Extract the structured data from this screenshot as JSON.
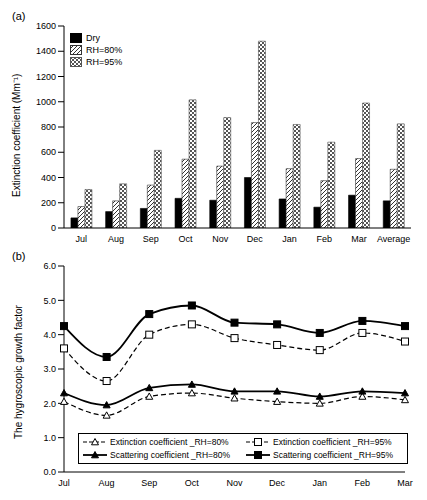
{
  "chart_data": [
    {
      "type": "bar",
      "title": "(a)",
      "y_label": "Extinction coefficient (Mm⁻¹)",
      "categories": [
        "Jul",
        "Aug",
        "Sep",
        "Oct",
        "Nov",
        "Dec",
        "Jan",
        "Feb",
        "Mar",
        "Average"
      ],
      "series": [
        {
          "name": "Dry",
          "color": "#000000",
          "values": [
            80,
            130,
            155,
            235,
            220,
            400,
            230,
            165,
            260,
            215
          ]
        },
        {
          "name": "RH=80%",
          "color": "#333333",
          "values": [
            170,
            215,
            340,
            545,
            490,
            835,
            470,
            375,
            550,
            465
          ]
        },
        {
          "name": "RH=95%",
          "color": "#555555",
          "values": [
            305,
            350,
            615,
            1015,
            875,
            1480,
            820,
            680,
            990,
            825
          ]
        }
      ],
      "ylim": [
        0,
        1600
      ],
      "yticks": [
        0,
        200,
        400,
        600,
        800,
        1000,
        1200,
        1400,
        1600
      ],
      "grid": false,
      "legend": "upper left"
    },
    {
      "type": "line",
      "title": "(b)",
      "y_label": "The hygroscopic growth factor",
      "categories": [
        "Jul",
        "Aug",
        "Sep",
        "Oct",
        "Nov",
        "Dec",
        "Jan",
        "Feb",
        "Mar"
      ],
      "series": [
        {
          "name": "Extinction coefficient _RH=80%",
          "color": "#000000",
          "line_style": "dashed",
          "marker": "open-triangle",
          "values": [
            2.05,
            1.65,
            2.2,
            2.3,
            2.15,
            2.05,
            2.0,
            2.2,
            2.1
          ]
        },
        {
          "name": "Extinction coefficient _RH=95%",
          "color": "#000000",
          "line_style": "dashed",
          "marker": "open-square",
          "values": [
            3.6,
            2.65,
            4.0,
            4.3,
            3.9,
            3.7,
            3.55,
            4.05,
            3.8
          ]
        },
        {
          "name": "Scattering coefficient _RH=80%",
          "color": "#000000",
          "line_style": "solid",
          "marker": "triangle",
          "values": [
            2.3,
            1.95,
            2.45,
            2.55,
            2.35,
            2.35,
            2.2,
            2.35,
            2.3
          ]
        },
        {
          "name": "Scattering coefficient _RH=95%",
          "color": "#000000",
          "line_style": "solid",
          "marker": "square",
          "values": [
            4.25,
            3.35,
            4.6,
            4.85,
            4.35,
            4.3,
            4.05,
            4.4,
            4.25
          ]
        }
      ],
      "ylim": [
        0,
        6
      ],
      "yticks": [
        {
          "value": 0,
          "label": "0.0"
        },
        {
          "value": 1,
          "label": "1.0"
        },
        {
          "value": 2,
          "label": "2.0"
        },
        {
          "value": 3,
          "label": "3.0"
        },
        {
          "value": 4,
          "label": "4.0"
        },
        {
          "value": 5,
          "label": "5.0"
        },
        {
          "value": 6,
          "label": "6.0"
        }
      ],
      "grid": false,
      "legend": "lower center"
    }
  ]
}
